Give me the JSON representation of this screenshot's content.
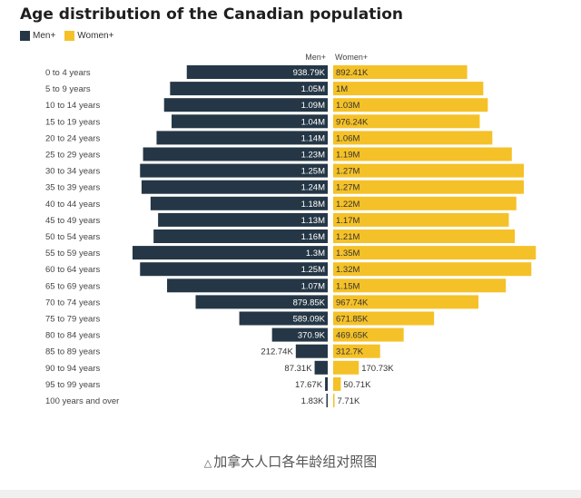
{
  "chart_data": {
    "type": "bar",
    "orientation": "horizontal-pyramid",
    "title": "Age distribution of the Canadian population",
    "legend": [
      {
        "name": "Men+",
        "color": "#253746"
      },
      {
        "name": "Women+",
        "color": "#f5c128"
      }
    ],
    "column_headers": {
      "men": "Men+",
      "women": "Women+"
    },
    "categories": [
      "0 to 4 years",
      "5 to 9 years",
      "10 to 14 years",
      "15 to 19 years",
      "20 to 24 years",
      "25 to 29 years",
      "30 to 34 years",
      "35 to 39 years",
      "40 to 44 years",
      "45 to 49 years",
      "50 to 54 years",
      "55 to 59 years",
      "60 to 64 years",
      "65 to 69 years",
      "70 to 74 years",
      "75 to 79 years",
      "80 to 84 years",
      "85 to 89 years",
      "90 to 94 years",
      "95 to 99 years",
      "100 years and over"
    ],
    "series": [
      {
        "name": "Men+",
        "color": "#253746",
        "values": [
          938790,
          1050000,
          1090000,
          1040000,
          1140000,
          1230000,
          1250000,
          1240000,
          1180000,
          1130000,
          1160000,
          1300000,
          1250000,
          1070000,
          879850,
          589090,
          370900,
          212740,
          87310,
          17670,
          1830
        ],
        "labels": [
          "938.79K",
          "1.05M",
          "1.09M",
          "1.04M",
          "1.14M",
          "1.23M",
          "1.25M",
          "1.24M",
          "1.18M",
          "1.13M",
          "1.16M",
          "1.3M",
          "1.25M",
          "1.07M",
          "879.85K",
          "589.09K",
          "370.9K",
          "212.74K",
          "87.31K",
          "17.67K",
          "1.83K"
        ]
      },
      {
        "name": "Women+",
        "color": "#f5c128",
        "values": [
          892410,
          1000000,
          1030000,
          976240,
          1060000,
          1190000,
          1270000,
          1270000,
          1220000,
          1170000,
          1210000,
          1350000,
          1320000,
          1150000,
          967740,
          671850,
          469650,
          312700,
          170730,
          50710,
          7710
        ],
        "labels": [
          "892.41K",
          "1M",
          "1.03M",
          "976.24K",
          "1.06M",
          "1.19M",
          "1.27M",
          "1.27M",
          "1.22M",
          "1.17M",
          "1.21M",
          "1.35M",
          "1.32M",
          "1.15M",
          "967.74K",
          "671.85K",
          "469.65K",
          "312.7K",
          "170.73K",
          "50.71K",
          "7.71K"
        ]
      }
    ],
    "grid": false
  },
  "caption": {
    "icon": "triangle-icon",
    "text": "加拿大人口各年龄组对照图"
  }
}
